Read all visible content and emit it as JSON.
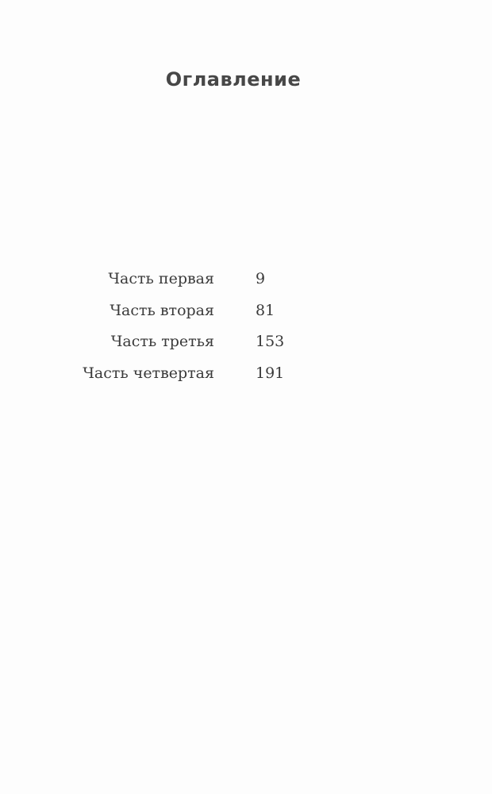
{
  "title": "Оглавление",
  "entries": [
    {
      "label": "Часть первая",
      "page": "9"
    },
    {
      "label": "Часть вторая",
      "page": "81"
    },
    {
      "label": "Часть третья",
      "page": "153"
    },
    {
      "label": "Часть четвертая",
      "page": "191"
    }
  ]
}
